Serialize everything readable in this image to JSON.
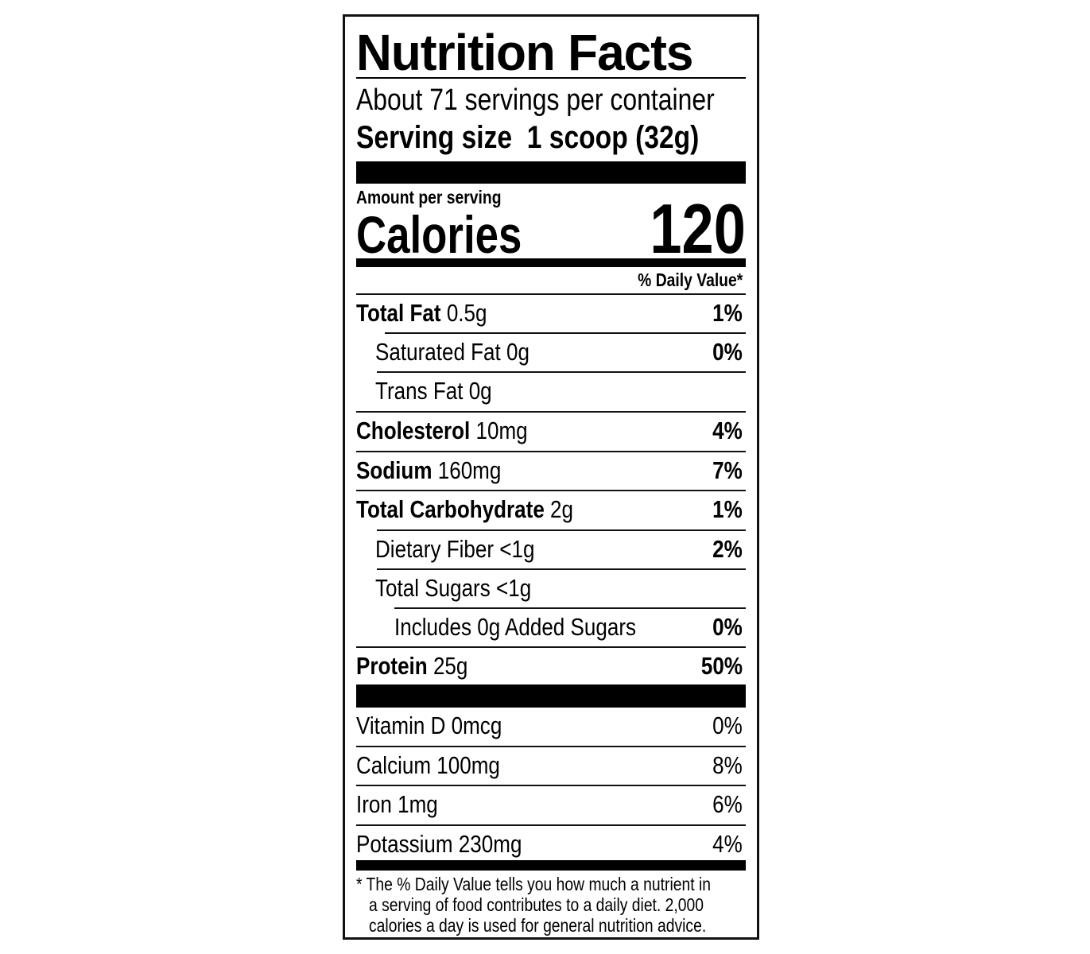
{
  "title": "Nutrition Facts",
  "servings_per_container": "About 71 servings per container",
  "serving_size": {
    "label": "Serving size",
    "value": "1 scoop (32g)"
  },
  "amount_per_serving": "Amount per serving",
  "calories": {
    "label": "Calories",
    "value": "120"
  },
  "daily_value_header": "% Daily Value*",
  "nutrients": [
    {
      "name": "Total Fat",
      "amount": "0.5g",
      "dv": "1%"
    },
    {
      "name": "Saturated Fat",
      "amount": "0g",
      "dv": "0%"
    },
    {
      "name": "Trans Fat",
      "amount": "0g",
      "dv": ""
    },
    {
      "name": "Cholesterol",
      "amount": "10mg",
      "dv": "4%"
    },
    {
      "name": "Sodium",
      "amount": "160mg",
      "dv": "7%"
    },
    {
      "name": "Total Carbohydrate",
      "amount": "2g",
      "dv": "1%"
    },
    {
      "name": "Dietary Fiber",
      "amount": "<1g",
      "dv": "2%"
    },
    {
      "name": "Total Sugars",
      "amount": "<1g",
      "dv": ""
    },
    {
      "name": "Includes 0g Added Sugars",
      "amount": "",
      "dv": "0%"
    },
    {
      "name": "Protein",
      "amount": "25g",
      "dv": "50%"
    }
  ],
  "vitamins": [
    {
      "text": "Vitamin D 0mcg",
      "dv": "0%"
    },
    {
      "text": "Calcium 100mg",
      "dv": "8%"
    },
    {
      "text": "Iron 1mg",
      "dv": "6%"
    },
    {
      "text": "Potassium 230mg",
      "dv": "4%"
    }
  ],
  "footnote": [
    "* The % Daily Value tells you how much a nutrient in",
    "a serving of food contributes to a daily diet. 2,000",
    "calories a day is used for general nutrition advice."
  ]
}
